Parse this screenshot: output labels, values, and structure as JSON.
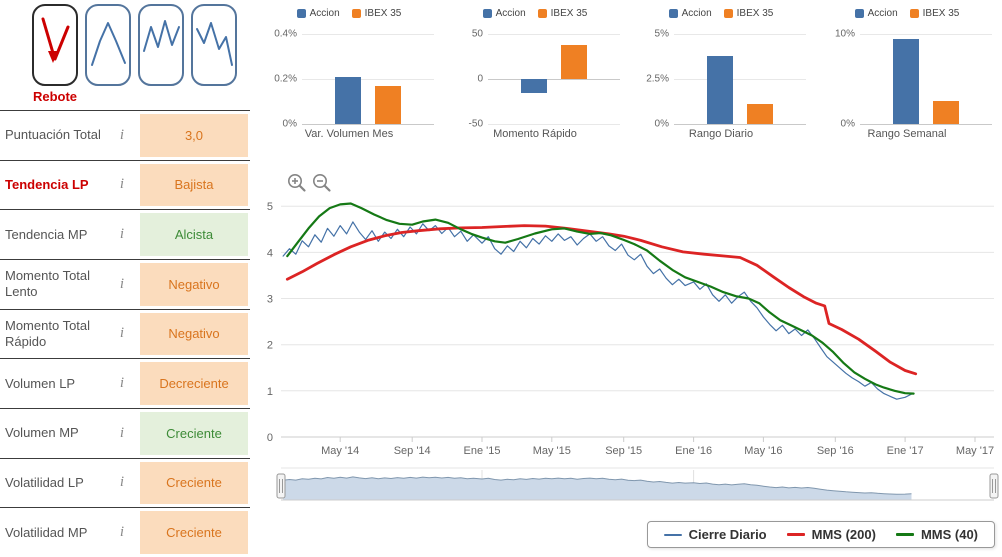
{
  "colors": {
    "series_blue": "#4572a7",
    "series_orange": "#ef8023",
    "mms200_red": "#dc2424",
    "mms40_green": "#157915",
    "negative_bg": "#fbdcbd",
    "negative_text": "#d9751e",
    "positive_bg": "#e4f0dc",
    "positive_text": "#3d8b37",
    "alert_red": "#cc0000",
    "navigator_fill": "#ccd9e8",
    "navigator_line": "#8097ae"
  },
  "icons": {
    "info_glyph": "i",
    "zoom_in": "magnifier-plus-icon",
    "zoom_out": "magnifier-minus-icon"
  },
  "patterns": {
    "selected_label": "Rebote"
  },
  "indicators": {
    "rows": [
      {
        "label": "Puntuación Total",
        "value": "3,0",
        "state": "orange",
        "alert": false
      },
      {
        "label": "Tendencia LP",
        "value": "Bajista",
        "state": "orange",
        "alert": true
      },
      {
        "label": "Tendencia MP",
        "value": "Alcista",
        "state": "green",
        "alert": false
      },
      {
        "label": "Momento Total Lento",
        "value": "Negativo",
        "state": "orange",
        "alert": false
      },
      {
        "label": "Momento Total Rápido",
        "value": "Negativo",
        "state": "orange",
        "alert": false
      },
      {
        "label": "Volumen LP",
        "value": "Decreciente",
        "state": "orange",
        "alert": false
      },
      {
        "label": "Volumen MP",
        "value": "Creciente",
        "state": "green",
        "alert": false
      },
      {
        "label": "Volatilidad LP",
        "value": "Creciente",
        "state": "orange",
        "alert": false
      },
      {
        "label": "Volatilidad MP",
        "value": "Creciente",
        "state": "orange",
        "alert": false
      }
    ]
  },
  "chart_data": [
    {
      "type": "bar",
      "title": "Var. Volumen Mes",
      "categories": [
        "Accion",
        "IBEX 35"
      ],
      "values": [
        0.21,
        0.17
      ],
      "ylim": [
        0,
        0.4
      ],
      "yticks": [
        {
          "v": 0,
          "label": "0%"
        },
        {
          "v": 0.2,
          "label": "0.2%"
        },
        {
          "v": 0.4,
          "label": "0.4%"
        }
      ]
    },
    {
      "type": "bar",
      "title": "Momento Rápido",
      "categories": [
        "Accion",
        "IBEX 35"
      ],
      "values": [
        -15,
        38
      ],
      "ylim": [
        -50,
        50
      ],
      "yticks": [
        {
          "v": -50,
          "label": "-50"
        },
        {
          "v": 0,
          "label": "0"
        },
        {
          "v": 50,
          "label": "50"
        }
      ]
    },
    {
      "type": "bar",
      "title": "Rango Diario",
      "categories": [
        "Accion",
        "IBEX 35"
      ],
      "values": [
        3.8,
        1.1
      ],
      "ylim": [
        0,
        5
      ],
      "yticks": [
        {
          "v": 0,
          "label": "0%"
        },
        {
          "v": 2.5,
          "label": "2.5%"
        },
        {
          "v": 5,
          "label": "5%"
        }
      ]
    },
    {
      "type": "bar",
      "title": "Rango Semanal",
      "categories": [
        "Accion",
        "IBEX 35"
      ],
      "values": [
        9.4,
        2.6
      ],
      "ylim": [
        0,
        10
      ],
      "yticks": [
        {
          "v": 0,
          "label": "0%"
        },
        {
          "v": 10,
          "label": "10%"
        }
      ]
    },
    {
      "type": "line",
      "name": "price-history",
      "ylim": [
        0,
        5.85
      ],
      "yticks": [
        0,
        1,
        2,
        3,
        4,
        5
      ],
      "xlim": [
        2014.05,
        2017.42
      ],
      "xticks": [
        {
          "v": 2014.33,
          "label": "May '14"
        },
        {
          "v": 2014.67,
          "label": "Sep '14"
        },
        {
          "v": 2015.0,
          "label": "Ene '15"
        },
        {
          "v": 2015.33,
          "label": "May '15"
        },
        {
          "v": 2015.67,
          "label": "Sep '15"
        },
        {
          "v": 2016.0,
          "label": "Ene '16"
        },
        {
          "v": 2016.33,
          "label": "May '16"
        },
        {
          "v": 2016.67,
          "label": "Sep '16"
        },
        {
          "v": 2017.0,
          "label": "Ene '17"
        },
        {
          "v": 2017.33,
          "label": "May '17"
        }
      ],
      "series": [
        {
          "name": "Cierre Diario",
          "color": "#4572a7",
          "width": 1.2,
          "points": [
            [
              2014.06,
              3.92
            ],
            [
              2014.09,
              4.08
            ],
            [
              2014.12,
              3.96
            ],
            [
              2014.15,
              4.25
            ],
            [
              2014.18,
              4.12
            ],
            [
              2014.21,
              4.38
            ],
            [
              2014.24,
              4.22
            ],
            [
              2014.27,
              4.52
            ],
            [
              2014.3,
              4.35
            ],
            [
              2014.33,
              4.58
            ],
            [
              2014.36,
              4.4
            ],
            [
              2014.39,
              4.66
            ],
            [
              2014.42,
              4.44
            ],
            [
              2014.45,
              4.28
            ],
            [
              2014.48,
              4.47
            ],
            [
              2014.51,
              4.24
            ],
            [
              2014.54,
              4.44
            ],
            [
              2014.57,
              4.3
            ],
            [
              2014.6,
              4.5
            ],
            [
              2014.63,
              4.34
            ],
            [
              2014.66,
              4.55
            ],
            [
              2014.69,
              4.4
            ],
            [
              2014.72,
              4.62
            ],
            [
              2014.75,
              4.47
            ],
            [
              2014.78,
              4.58
            ],
            [
              2014.81,
              4.41
            ],
            [
              2014.84,
              4.54
            ],
            [
              2014.87,
              4.34
            ],
            [
              2014.9,
              4.46
            ],
            [
              2014.93,
              4.24
            ],
            [
              2014.96,
              4.38
            ],
            [
              2015.0,
              4.2
            ],
            [
              2015.03,
              4.34
            ],
            [
              2015.06,
              4.08
            ],
            [
              2015.09,
              3.96
            ],
            [
              2015.12,
              4.14
            ],
            [
              2015.15,
              4.02
            ],
            [
              2015.18,
              4.24
            ],
            [
              2015.21,
              4.1
            ],
            [
              2015.24,
              4.3
            ],
            [
              2015.27,
              4.18
            ],
            [
              2015.3,
              4.36
            ],
            [
              2015.33,
              4.24
            ],
            [
              2015.36,
              4.4
            ],
            [
              2015.39,
              4.26
            ],
            [
              2015.42,
              4.34
            ],
            [
              2015.45,
              4.16
            ],
            [
              2015.48,
              4.3
            ],
            [
              2015.51,
              4.4
            ],
            [
              2015.54,
              4.24
            ],
            [
              2015.57,
              4.34
            ],
            [
              2015.6,
              4.14
            ],
            [
              2015.63,
              4.04
            ],
            [
              2015.66,
              4.18
            ],
            [
              2015.69,
              3.94
            ],
            [
              2015.72,
              3.84
            ],
            [
              2015.75,
              3.96
            ],
            [
              2015.78,
              3.7
            ],
            [
              2015.81,
              3.54
            ],
            [
              2015.84,
              3.64
            ],
            [
              2015.87,
              3.44
            ],
            [
              2015.9,
              3.3
            ],
            [
              2015.93,
              3.42
            ],
            [
              2015.96,
              3.28
            ],
            [
              2016.0,
              3.36
            ],
            [
              2016.03,
              3.2
            ],
            [
              2016.06,
              3.32
            ],
            [
              2016.09,
              3.08
            ],
            [
              2016.12,
              2.94
            ],
            [
              2016.15,
              3.08
            ],
            [
              2016.18,
              2.9
            ],
            [
              2016.21,
              3.04
            ],
            [
              2016.24,
              3.14
            ],
            [
              2016.27,
              2.94
            ],
            [
              2016.3,
              2.8
            ],
            [
              2016.33,
              2.6
            ],
            [
              2016.36,
              2.44
            ],
            [
              2016.39,
              2.3
            ],
            [
              2016.42,
              2.42
            ],
            [
              2016.45,
              2.24
            ],
            [
              2016.48,
              2.34
            ],
            [
              2016.51,
              2.2
            ],
            [
              2016.54,
              2.32
            ],
            [
              2016.57,
              2.14
            ],
            [
              2016.6,
              1.94
            ],
            [
              2016.63,
              1.74
            ],
            [
              2016.66,
              1.62
            ],
            [
              2016.69,
              1.5
            ],
            [
              2016.72,
              1.38
            ],
            [
              2016.75,
              1.28
            ],
            [
              2016.78,
              1.2
            ],
            [
              2016.81,
              1.1
            ],
            [
              2016.84,
              1.18
            ],
            [
              2016.87,
              1.04
            ],
            [
              2016.9,
              0.94
            ],
            [
              2016.93,
              0.88
            ],
            [
              2016.96,
              0.82
            ],
            [
              2017.0,
              0.86
            ],
            [
              2017.03,
              0.93
            ]
          ]
        },
        {
          "name": "MMS (200)",
          "color": "#dc2424",
          "width": 2.8,
          "points": [
            [
              2014.08,
              3.42
            ],
            [
              2014.15,
              3.58
            ],
            [
              2014.22,
              3.76
            ],
            [
              2014.3,
              3.95
            ],
            [
              2014.38,
              4.12
            ],
            [
              2014.46,
              4.26
            ],
            [
              2014.54,
              4.36
            ],
            [
              2014.62,
              4.43
            ],
            [
              2014.7,
              4.47
            ],
            [
              2014.8,
              4.51
            ],
            [
              2014.9,
              4.53
            ],
            [
              2015.0,
              4.54
            ],
            [
              2015.1,
              4.56
            ],
            [
              2015.2,
              4.58
            ],
            [
              2015.3,
              4.57
            ],
            [
              2015.4,
              4.52
            ],
            [
              2015.5,
              4.46
            ],
            [
              2015.6,
              4.4
            ],
            [
              2015.67,
              4.35
            ],
            [
              2015.75,
              4.26
            ],
            [
              2015.85,
              4.12
            ],
            [
              2015.95,
              4.01
            ],
            [
              2016.05,
              3.96
            ],
            [
              2016.15,
              3.92
            ],
            [
              2016.22,
              3.89
            ],
            [
              2016.3,
              3.72
            ],
            [
              2016.38,
              3.46
            ],
            [
              2016.45,
              3.24
            ],
            [
              2016.52,
              3.04
            ],
            [
              2016.58,
              2.9
            ],
            [
              2016.62,
              2.84
            ],
            [
              2016.64,
              2.46
            ],
            [
              2016.7,
              2.33
            ],
            [
              2016.78,
              2.12
            ],
            [
              2016.86,
              1.86
            ],
            [
              2016.93,
              1.62
            ],
            [
              2017.0,
              1.44
            ],
            [
              2017.05,
              1.37
            ]
          ]
        },
        {
          "name": "MMS (40)",
          "color": "#157915",
          "width": 2.2,
          "points": [
            [
              2014.08,
              3.92
            ],
            [
              2014.13,
              4.22
            ],
            [
              2014.18,
              4.52
            ],
            [
              2014.23,
              4.78
            ],
            [
              2014.28,
              4.96
            ],
            [
              2014.33,
              5.04
            ],
            [
              2014.38,
              5.06
            ],
            [
              2014.43,
              4.96
            ],
            [
              2014.49,
              4.82
            ],
            [
              2014.55,
              4.7
            ],
            [
              2014.61,
              4.62
            ],
            [
              2014.67,
              4.6
            ],
            [
              2014.72,
              4.67
            ],
            [
              2014.78,
              4.71
            ],
            [
              2014.84,
              4.64
            ],
            [
              2014.9,
              4.5
            ],
            [
              2014.95,
              4.4
            ],
            [
              2015.0,
              4.32
            ],
            [
              2015.06,
              4.24
            ],
            [
              2015.11,
              4.21
            ],
            [
              2015.17,
              4.29
            ],
            [
              2015.25,
              4.41
            ],
            [
              2015.33,
              4.5
            ],
            [
              2015.39,
              4.52
            ],
            [
              2015.45,
              4.45
            ],
            [
              2015.51,
              4.4
            ],
            [
              2015.56,
              4.42
            ],
            [
              2015.61,
              4.37
            ],
            [
              2015.67,
              4.27
            ],
            [
              2015.72,
              4.18
            ],
            [
              2015.78,
              4.04
            ],
            [
              2015.84,
              3.82
            ],
            [
              2015.9,
              3.62
            ],
            [
              2015.96,
              3.46
            ],
            [
              2016.02,
              3.36
            ],
            [
              2016.08,
              3.26
            ],
            [
              2016.14,
              3.14
            ],
            [
              2016.2,
              3.05
            ],
            [
              2016.26,
              3.0
            ],
            [
              2016.31,
              2.9
            ],
            [
              2016.36,
              2.7
            ],
            [
              2016.41,
              2.53
            ],
            [
              2016.46,
              2.42
            ],
            [
              2016.51,
              2.31
            ],
            [
              2016.56,
              2.2
            ],
            [
              2016.61,
              2.04
            ],
            [
              2016.66,
              1.84
            ],
            [
              2016.71,
              1.6
            ],
            [
              2016.76,
              1.4
            ],
            [
              2016.81,
              1.26
            ],
            [
              2016.86,
              1.14
            ],
            [
              2016.9,
              1.07
            ],
            [
              2016.95,
              1.0
            ],
            [
              2017.0,
              0.95
            ],
            [
              2017.04,
              0.94
            ]
          ]
        }
      ]
    },
    {
      "type": "area",
      "name": "navigator",
      "source_series": "Cierre Diario",
      "xticks": [
        {
          "v": 2015.0,
          "label": "Ene '15"
        },
        {
          "v": 2016.0,
          "label": "Ene '16"
        }
      ]
    }
  ],
  "legend": {
    "items": [
      {
        "label": "Cierre Diario",
        "color": "#4572a7",
        "thickness": 2
      },
      {
        "label": "MMS (200)",
        "color": "#dc2424",
        "thickness": 3
      },
      {
        "label": "MMS (40)",
        "color": "#157915",
        "thickness": 3
      }
    ]
  }
}
